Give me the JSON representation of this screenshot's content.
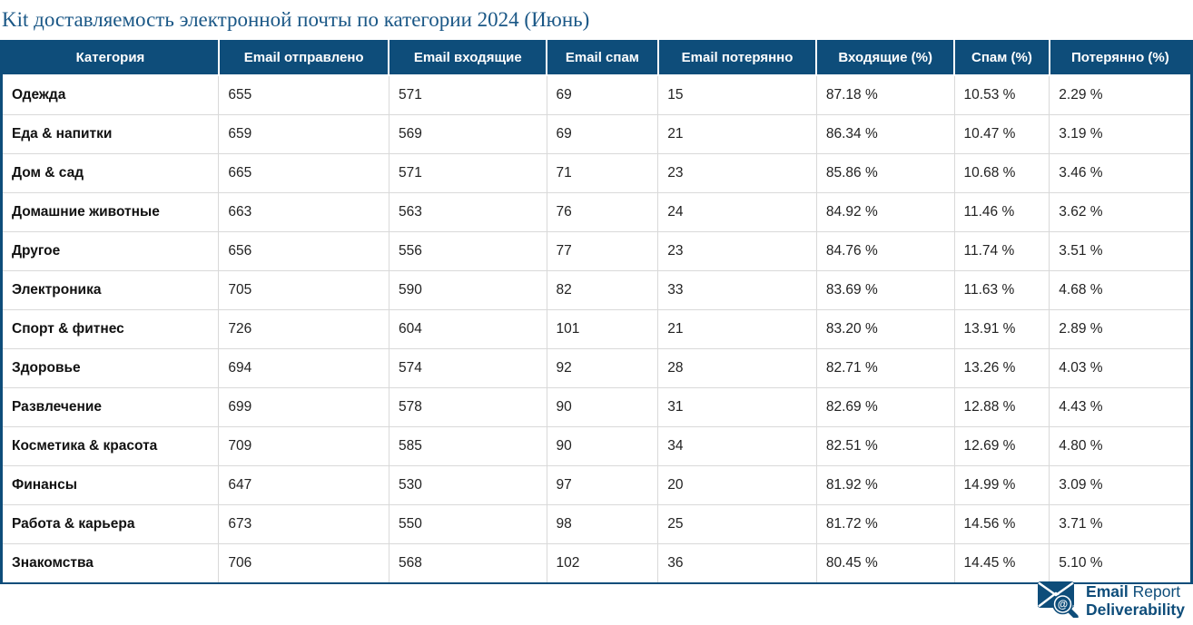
{
  "title": "Kit доставляемость электронной почты по категории 2024 (Июнь)",
  "chart_data": {
    "type": "table",
    "title": "Kit доставляемость электронной почты по категории 2024 (Июнь)",
    "columns": [
      "Категория",
      "Email отправлено",
      "Email входящие",
      "Email спам",
      "Email потерянно",
      "Входящие (%)",
      "Спам (%)",
      "Потерянно (%)"
    ],
    "rows": [
      [
        "Одежда",
        "655",
        "571",
        "69",
        "15",
        "87.18 %",
        "10.53 %",
        "2.29 %"
      ],
      [
        "Еда & напитки",
        "659",
        "569",
        "69",
        "21",
        "86.34 %",
        "10.47 %",
        "3.19 %"
      ],
      [
        "Дом & сад",
        "665",
        "571",
        "71",
        "23",
        "85.86 %",
        "10.68 %",
        "3.46 %"
      ],
      [
        "Домашние животные",
        "663",
        "563",
        "76",
        "24",
        "84.92 %",
        "11.46 %",
        "3.62 %"
      ],
      [
        "Другое",
        "656",
        "556",
        "77",
        "23",
        "84.76 %",
        "11.74 %",
        "3.51 %"
      ],
      [
        "Электроника",
        "705",
        "590",
        "82",
        "33",
        "83.69 %",
        "11.63 %",
        "4.68 %"
      ],
      [
        "Спорт & фитнес",
        "726",
        "604",
        "101",
        "21",
        "83.20 %",
        "13.91 %",
        "2.89 %"
      ],
      [
        "Здоровье",
        "694",
        "574",
        "92",
        "28",
        "82.71 %",
        "13.26 %",
        "4.03 %"
      ],
      [
        "Развлечение",
        "699",
        "578",
        "90",
        "31",
        "82.69 %",
        "12.88 %",
        "4.43 %"
      ],
      [
        "Косметика & красота",
        "709",
        "585",
        "90",
        "34",
        "82.51 %",
        "12.69 %",
        "4.80 %"
      ],
      [
        "Финансы",
        "647",
        "530",
        "97",
        "20",
        "81.92 %",
        "14.99 %",
        "3.09 %"
      ],
      [
        "Работа & карьера",
        "673",
        "550",
        "98",
        "25",
        "81.72 %",
        "14.56 %",
        "3.71 %"
      ],
      [
        "Знакомства",
        "706",
        "568",
        "102",
        "36",
        "80.45 %",
        "14.45 %",
        "5.10 %"
      ]
    ]
  },
  "footer": {
    "brand_word1": "Email",
    "brand_word2": " Report",
    "brand_line2": "Deliverability",
    "icon": "envelope-magnifier-icon"
  },
  "colors": {
    "header_bg": "#0e4d7a",
    "title_text": "#1a5786",
    "brand_blue": "#0e4d7a",
    "row_divider": "#d9d9d9"
  }
}
